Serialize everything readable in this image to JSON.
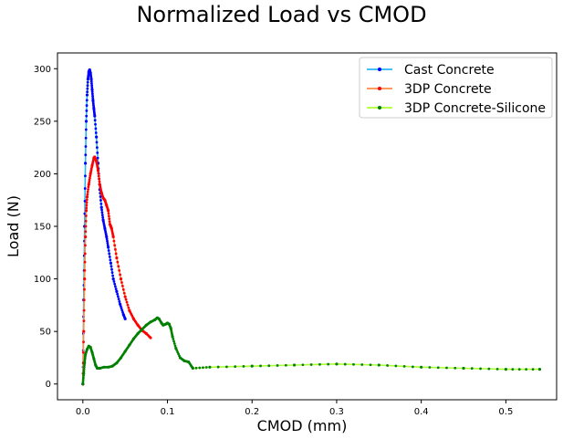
{
  "chart_data": {
    "type": "line",
    "title": "Normalized Load vs CMOD",
    "xlabel": "CMOD (mm)",
    "ylabel": "Load (N)",
    "xlim": [
      -0.03,
      0.56
    ],
    "ylim": [
      -15,
      315
    ],
    "xticks": [
      0.0,
      0.1,
      0.2,
      0.3,
      0.4,
      0.5
    ],
    "xtick_labels": [
      "0.0",
      "0.1",
      "0.2",
      "0.3",
      "0.4",
      "0.5"
    ],
    "yticks": [
      0,
      50,
      100,
      150,
      200,
      250,
      300
    ],
    "ytick_labels": [
      "0",
      "50",
      "100",
      "150",
      "200",
      "250",
      "300"
    ],
    "grid": false,
    "legend_position": "top-right",
    "series": [
      {
        "name": "Cast Concrete",
        "line_color": "#29b6f6",
        "marker_color": "#0000ff",
        "x": [
          0.0,
          0.001,
          0.002,
          0.003,
          0.004,
          0.005,
          0.006,
          0.007,
          0.008,
          0.009,
          0.01,
          0.011,
          0.012,
          0.013,
          0.014,
          0.016,
          0.018,
          0.02,
          0.022,
          0.024,
          0.026,
          0.028,
          0.03,
          0.033,
          0.036,
          0.04,
          0.044,
          0.048,
          0.05
        ],
        "y": [
          0,
          80,
          150,
          210,
          250,
          275,
          290,
          297,
          299,
          296,
          290,
          280,
          270,
          262,
          255,
          235,
          210,
          185,
          168,
          156,
          148,
          140,
          130,
          115,
          100,
          88,
          76,
          66,
          62
        ]
      },
      {
        "name": "3DP Concrete",
        "line_color": "#ff8c42",
        "marker_color": "#ff0000",
        "x": [
          0.0,
          0.001,
          0.002,
          0.003,
          0.004,
          0.005,
          0.007,
          0.009,
          0.011,
          0.013,
          0.014,
          0.016,
          0.018,
          0.02,
          0.022,
          0.024,
          0.026,
          0.028,
          0.03,
          0.032,
          0.033,
          0.034,
          0.036,
          0.04,
          0.045,
          0.05,
          0.055,
          0.06,
          0.065,
          0.07,
          0.075,
          0.08
        ],
        "y": [
          0,
          50,
          100,
          140,
          165,
          178,
          190,
          200,
          208,
          215,
          216,
          212,
          203,
          190,
          182,
          177,
          175,
          170,
          165,
          152,
          150,
          148,
          140,
          120,
          100,
          83,
          70,
          62,
          56,
          51,
          48,
          44
        ]
      },
      {
        "name": "3DP Concrete-Silicone",
        "line_color": "#adff2f",
        "marker_color": "#008000",
        "x": [
          0.0,
          0.001,
          0.002,
          0.003,
          0.005,
          0.007,
          0.009,
          0.011,
          0.013,
          0.015,
          0.017,
          0.02,
          0.025,
          0.03,
          0.035,
          0.04,
          0.045,
          0.05,
          0.055,
          0.06,
          0.065,
          0.07,
          0.075,
          0.08,
          0.085,
          0.088,
          0.09,
          0.093,
          0.095,
          0.098,
          0.1,
          0.102,
          0.104,
          0.106,
          0.11,
          0.115,
          0.12,
          0.125,
          0.13,
          0.15,
          0.2,
          0.25,
          0.3,
          0.35,
          0.4,
          0.45,
          0.5,
          0.54
        ],
        "y": [
          0,
          10,
          20,
          28,
          33,
          36,
          35,
          30,
          24,
          18,
          15,
          15,
          16,
          16,
          17,
          20,
          25,
          31,
          37,
          43,
          48,
          52,
          56,
          59,
          61,
          63,
          62,
          58,
          56,
          57,
          58,
          57,
          53,
          45,
          34,
          25,
          22,
          21,
          15,
          16,
          17,
          18,
          19,
          18,
          16,
          15,
          14,
          14
        ]
      }
    ]
  }
}
